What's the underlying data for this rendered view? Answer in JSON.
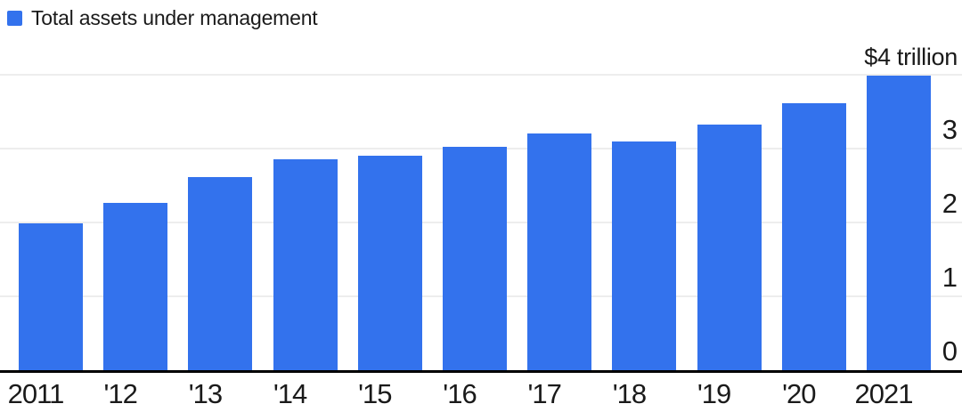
{
  "chart_data": {
    "type": "bar",
    "legend": "Total assets under management",
    "legend_position": "top-left",
    "categories": [
      "2011",
      "'12",
      "'13",
      "'14",
      "'15",
      "'16",
      "'17",
      "'18",
      "'19",
      "'20",
      "2021"
    ],
    "values": [
      1.99,
      2.26,
      2.62,
      2.85,
      2.9,
      3.03,
      3.21,
      3.1,
      3.32,
      3.62,
      3.99
    ],
    "unit": "trillion USD",
    "xlabel": "",
    "ylabel": "",
    "ylim": [
      0,
      4
    ],
    "grid": "horizontal",
    "y_ticks": [
      {
        "value": 4,
        "label": "$4 trillion"
      },
      {
        "value": 3,
        "label": "3"
      },
      {
        "value": 2,
        "label": "2"
      },
      {
        "value": 1,
        "label": "1"
      },
      {
        "value": 0,
        "label": "0"
      }
    ],
    "colors": {
      "bar": "#3372ed",
      "text": "#1a1a1a",
      "gridline": "#ededed",
      "axis": "#000000",
      "background": "#ffffff"
    }
  }
}
